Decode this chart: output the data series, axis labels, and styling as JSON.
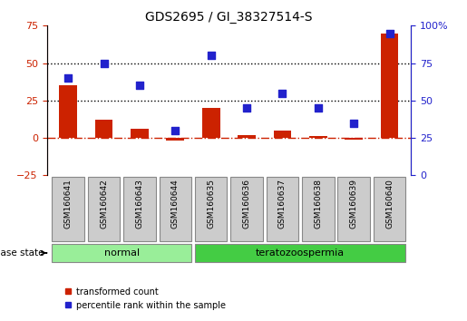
{
  "title": "GDS2695 / GI_38327514-S",
  "samples": [
    "GSM160641",
    "GSM160642",
    "GSM160643",
    "GSM160644",
    "GSM160635",
    "GSM160636",
    "GSM160637",
    "GSM160638",
    "GSM160639",
    "GSM160640"
  ],
  "transformed_count": [
    35,
    12,
    6,
    -2,
    20,
    2,
    5,
    1,
    -1,
    70
  ],
  "percentile_rank": [
    65,
    75,
    60,
    30,
    80,
    45,
    55,
    45,
    35,
    95
  ],
  "bar_color": "#cc2200",
  "dot_color": "#2222cc",
  "left_ylim": [
    -25,
    75
  ],
  "right_ylim": [
    0,
    100
  ],
  "left_yticks": [
    -25,
    0,
    25,
    50,
    75
  ],
  "right_yticks": [
    0,
    25,
    50,
    75,
    100
  ],
  "right_yticklabels": [
    "0",
    "25",
    "50",
    "75",
    "100%"
  ],
  "hline_y": [
    25,
    50
  ],
  "zero_line_y": 0,
  "groups": [
    {
      "label": "normal",
      "indices": [
        0,
        1,
        2,
        3
      ],
      "color": "#99ee99"
    },
    {
      "label": "teratozoospermia",
      "indices": [
        4,
        5,
        6,
        7,
        8,
        9
      ],
      "color": "#44cc44"
    }
  ],
  "disease_state_label": "disease state",
  "legend_items": [
    {
      "label": "transformed count",
      "color": "#cc2200",
      "marker": "s"
    },
    {
      "label": "percentile rank within the sample",
      "color": "#2222cc",
      "marker": "s"
    }
  ],
  "background_color": "#ffffff",
  "plot_bg_color": "#ffffff",
  "sample_box_color": "#cccccc",
  "sample_box_edge": "#888888"
}
